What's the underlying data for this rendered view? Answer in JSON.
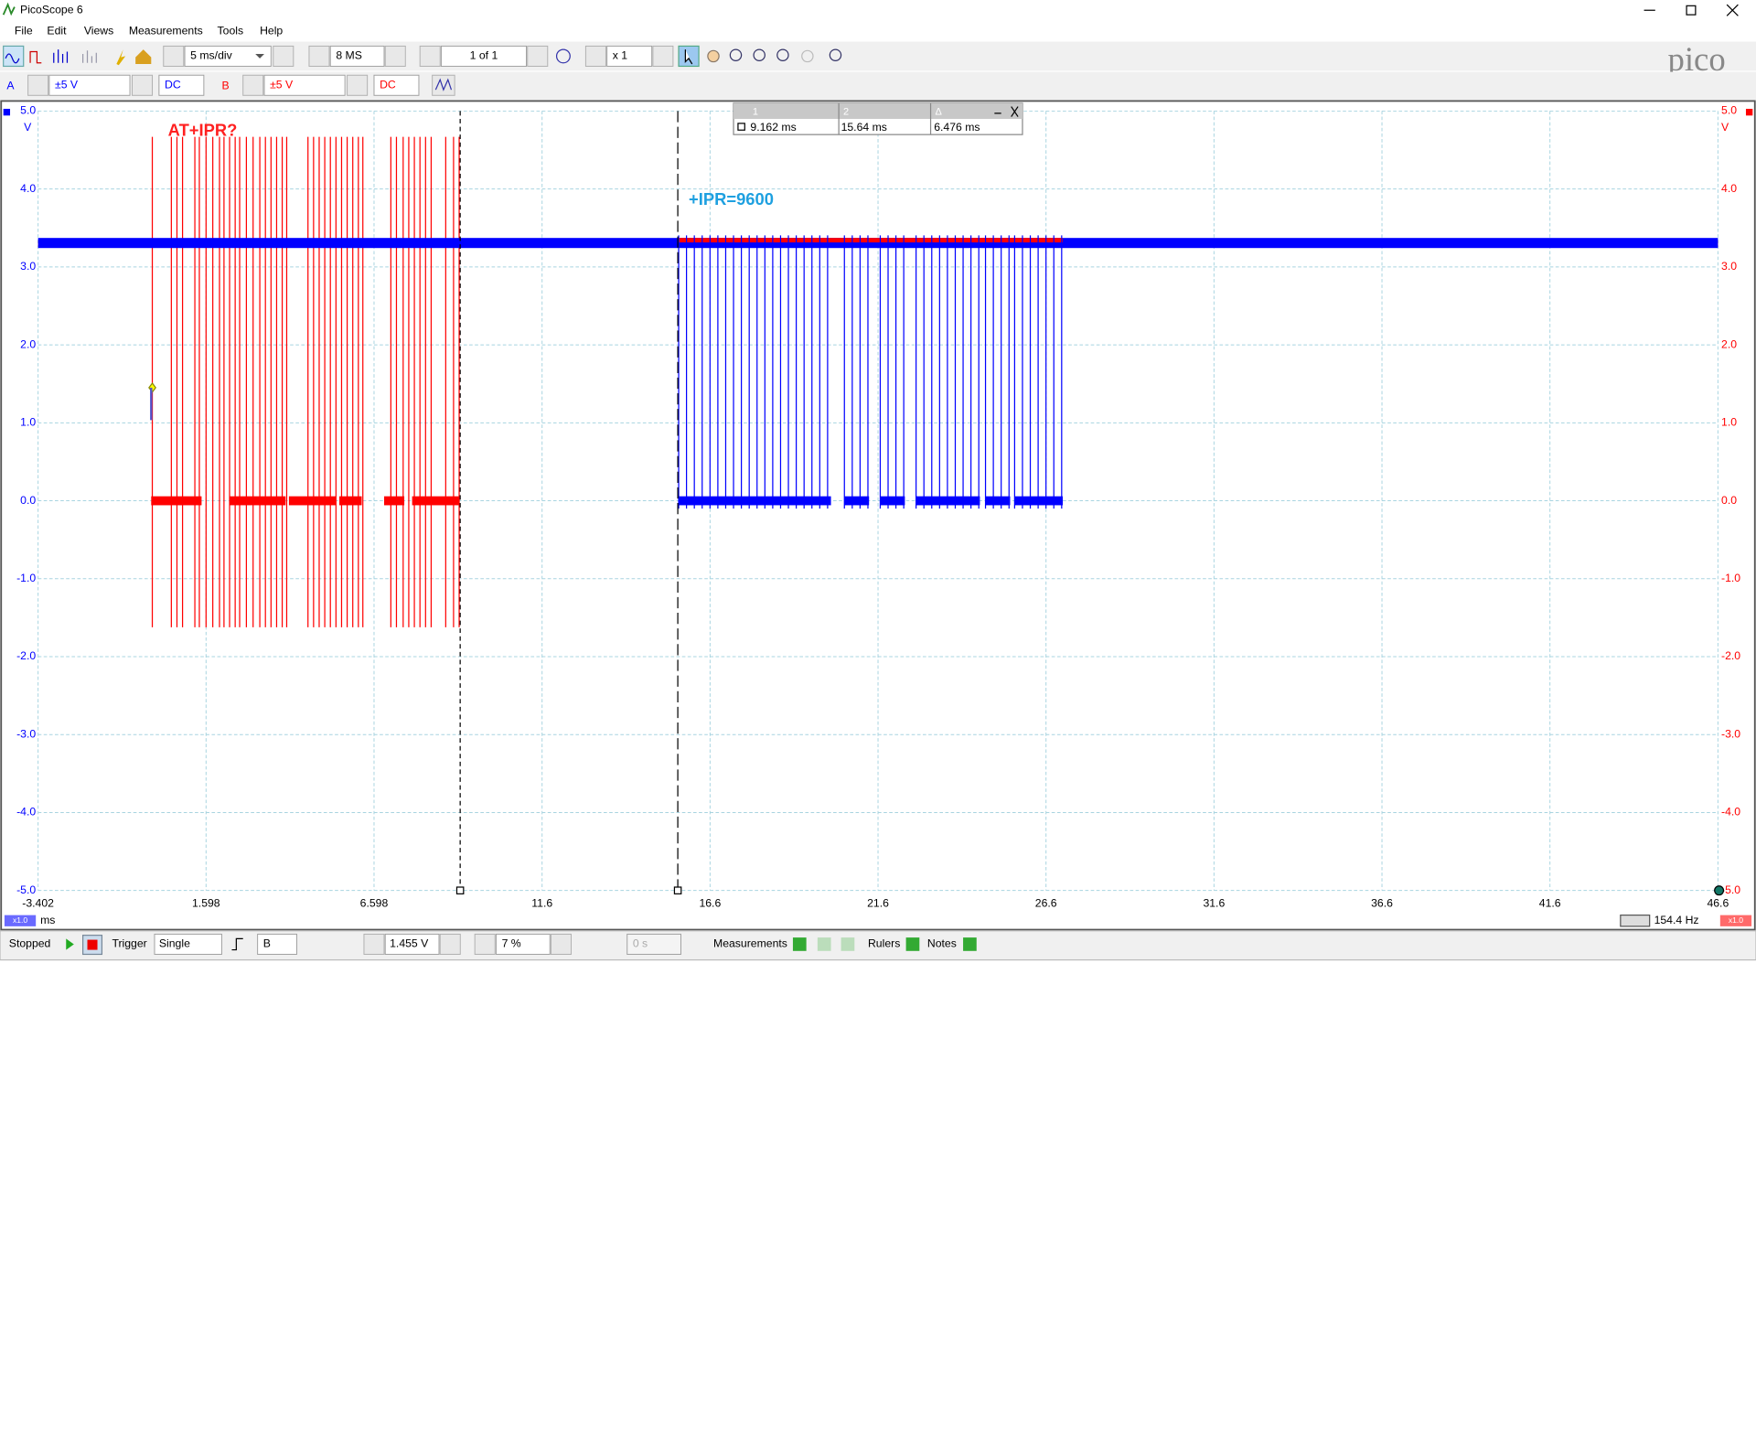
{
  "window": {
    "title": "PicoScope 6"
  },
  "menu": [
    "File",
    "Edit",
    "Views",
    "Measurements",
    "Tools",
    "Help"
  ],
  "toolbar": {
    "timebase": "5 ms/div",
    "samples": "8 MS",
    "buffer": "1 of 1",
    "zoom": "x 1"
  },
  "channels": [
    {
      "name": "A",
      "range": "±5 V",
      "coupling": "DC",
      "color": "#0000ff"
    },
    {
      "name": "B",
      "range": "±5 V",
      "coupling": "DC",
      "color": "#ff0000"
    }
  ],
  "scope": {
    "y_unit": "V",
    "x_unit": "ms",
    "xlim": [
      -3.402,
      46.6
    ],
    "ylim": [
      -5,
      5
    ],
    "xticks": [
      -3.402,
      1.598,
      6.598,
      11.6,
      16.6,
      21.6,
      26.6,
      31.6,
      36.6,
      41.6,
      46.6
    ],
    "yticks": [
      {
        "value": 5,
        "label": "5.0"
      },
      {
        "value": 4,
        "label": "4.0"
      },
      {
        "value": 3,
        "label": "3.0"
      },
      {
        "value": 2,
        "label": "2.0"
      },
      {
        "value": 1,
        "label": "1.0"
      },
      {
        "value": 0,
        "label": "0.0"
      },
      {
        "value": -1,
        "label": "-1.0"
      },
      {
        "value": -2,
        "label": "-2.0"
      },
      {
        "value": -3,
        "label": "-3.0"
      },
      {
        "value": -4,
        "label": "-4.0"
      },
      {
        "value": -5,
        "label": "-5.0"
      }
    ],
    "annotations": [
      "AT+IPR?",
      "+IPR=9600"
    ],
    "x_scale_left": "x1.0",
    "x_scale_right": "x1.0",
    "frequency": "154.4 Hz"
  },
  "rulers": {
    "headers": [
      "1",
      "2",
      "Δ"
    ],
    "times": [
      {
        "value": 9.162,
        "label": "9.162 ms"
      },
      {
        "value": 15.64,
        "label": "15.64 ms"
      }
    ],
    "delta": "6.476 ms"
  },
  "status": {
    "state": "Stopped",
    "trigger_label": "Trigger",
    "trigger_mode": "Single",
    "trigger_source": "B",
    "threshold": "1.455 V",
    "pre_trigger": "7 %",
    "delay": "0 s",
    "measurements": "Measurements",
    "rulers": "Rulers",
    "notes": "Notes"
  }
}
